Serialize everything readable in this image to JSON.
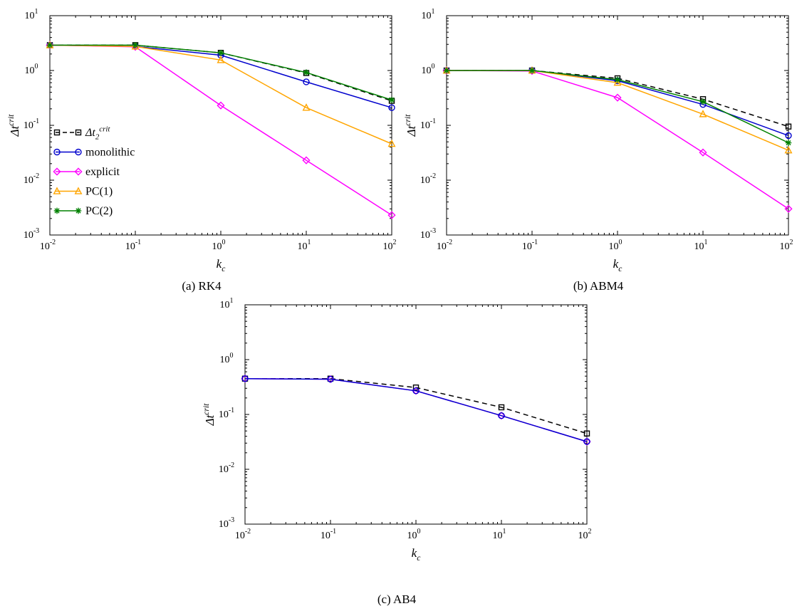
{
  "figure": {
    "captions": {
      "a": "(a)  RK4",
      "b": "(b)  ABM4",
      "c": "(c)  AB4"
    }
  },
  "chart_data": [
    {
      "id": "a",
      "type": "line",
      "title": "(a) RK4",
      "xscale": "log",
      "yscale": "log",
      "xlim": [
        0.01,
        100
      ],
      "ylim": [
        0.001,
        10
      ],
      "xlabel": "k_c",
      "ylabel": "Delta t^crit",
      "xlabel_parts": [
        [
          "i",
          "k"
        ],
        [
          "sub",
          "c"
        ]
      ],
      "ylabel_parts": [
        [
          "i",
          "Δt"
        ],
        [
          "sup",
          "crit"
        ]
      ],
      "x": [
        0.01,
        0.1,
        1,
        10,
        100
      ],
      "legend": true,
      "series": [
        {
          "name": "Δt_2^crit",
          "name_parts": [
            [
              "i",
              "Δt"
            ],
            [
              "sub",
              "2"
            ],
            [
              "sup",
              "crit"
            ]
          ],
          "color": "#000000",
          "dash": true,
          "marker": "square",
          "values": [
            2.9,
            2.9,
            2.1,
            0.9,
            0.28
          ]
        },
        {
          "name": "monolithic",
          "color": "#0000cd",
          "dash": false,
          "marker": "circle",
          "values": [
            2.9,
            2.75,
            1.9,
            0.62,
            0.21
          ]
        },
        {
          "name": "explicit",
          "color": "#ff00ff",
          "dash": false,
          "marker": "diamond",
          "values": [
            2.9,
            2.7,
            0.23,
            0.023,
            0.0023
          ]
        },
        {
          "name": "PC(1)",
          "color": "#ffa500",
          "dash": false,
          "marker": "triangle",
          "values": [
            2.9,
            2.75,
            1.55,
            0.21,
            0.046
          ]
        },
        {
          "name": "PC(2)",
          "color": "#008000",
          "dash": false,
          "marker": "star",
          "values": [
            2.9,
            2.9,
            2.1,
            0.92,
            0.29
          ]
        }
      ]
    },
    {
      "id": "b",
      "type": "line",
      "title": "(b) ABM4",
      "xscale": "log",
      "yscale": "log",
      "xlim": [
        0.01,
        100
      ],
      "ylim": [
        0.001,
        10
      ],
      "xlabel": "k_c",
      "ylabel": "Delta t^crit",
      "xlabel_parts": [
        [
          "i",
          "k"
        ],
        [
          "sub",
          "c"
        ]
      ],
      "ylabel_parts": [
        [
          "i",
          "Δt"
        ],
        [
          "sup",
          "crit"
        ]
      ],
      "x": [
        0.01,
        0.1,
        1,
        10,
        100
      ],
      "legend": false,
      "series": [
        {
          "name": "Δt_2^crit",
          "color": "#000000",
          "dash": true,
          "marker": "square",
          "values": [
            1.0,
            1.0,
            0.72,
            0.3,
            0.095
          ]
        },
        {
          "name": "monolithic",
          "color": "#0000cd",
          "dash": false,
          "marker": "circle",
          "values": [
            1.0,
            1.0,
            0.65,
            0.24,
            0.065
          ]
        },
        {
          "name": "explicit",
          "color": "#ff00ff",
          "dash": false,
          "marker": "diamond",
          "values": [
            1.0,
            0.98,
            0.32,
            0.032,
            0.003
          ]
        },
        {
          "name": "PC(1)",
          "color": "#ffa500",
          "dash": false,
          "marker": "triangle",
          "values": [
            1.0,
            1.0,
            0.6,
            0.16,
            0.035
          ]
        },
        {
          "name": "PC(2)",
          "color": "#008000",
          "dash": false,
          "marker": "star",
          "values": [
            1.0,
            1.0,
            0.68,
            0.27,
            0.048
          ]
        }
      ]
    },
    {
      "id": "c",
      "type": "line",
      "title": "(c) AB4",
      "xscale": "log",
      "yscale": "log",
      "xlim": [
        0.01,
        100
      ],
      "ylim": [
        0.001,
        10
      ],
      "xlabel": "k_c",
      "ylabel": "Delta t^crit",
      "xlabel_parts": [
        [
          "i",
          "k"
        ],
        [
          "sub",
          "c"
        ]
      ],
      "ylabel_parts": [
        [
          "i",
          "Δt"
        ],
        [
          "sup",
          "crit"
        ]
      ],
      "x": [
        0.01,
        0.1,
        1,
        10,
        100
      ],
      "legend": false,
      "series": [
        {
          "name": "Δt_2^crit",
          "color": "#000000",
          "dash": true,
          "marker": "square",
          "values": [
            0.45,
            0.45,
            0.31,
            0.135,
            0.045
          ]
        },
        {
          "name": "explicit",
          "color": "#ff00ff",
          "dash": false,
          "marker": "diamond",
          "values": [
            0.45,
            0.44,
            0.27,
            0.095,
            0.032
          ]
        },
        {
          "name": "monolithic",
          "color": "#0000cd",
          "dash": false,
          "marker": "circle",
          "values": [
            0.45,
            0.44,
            0.27,
            0.095,
            0.032
          ]
        }
      ]
    }
  ]
}
